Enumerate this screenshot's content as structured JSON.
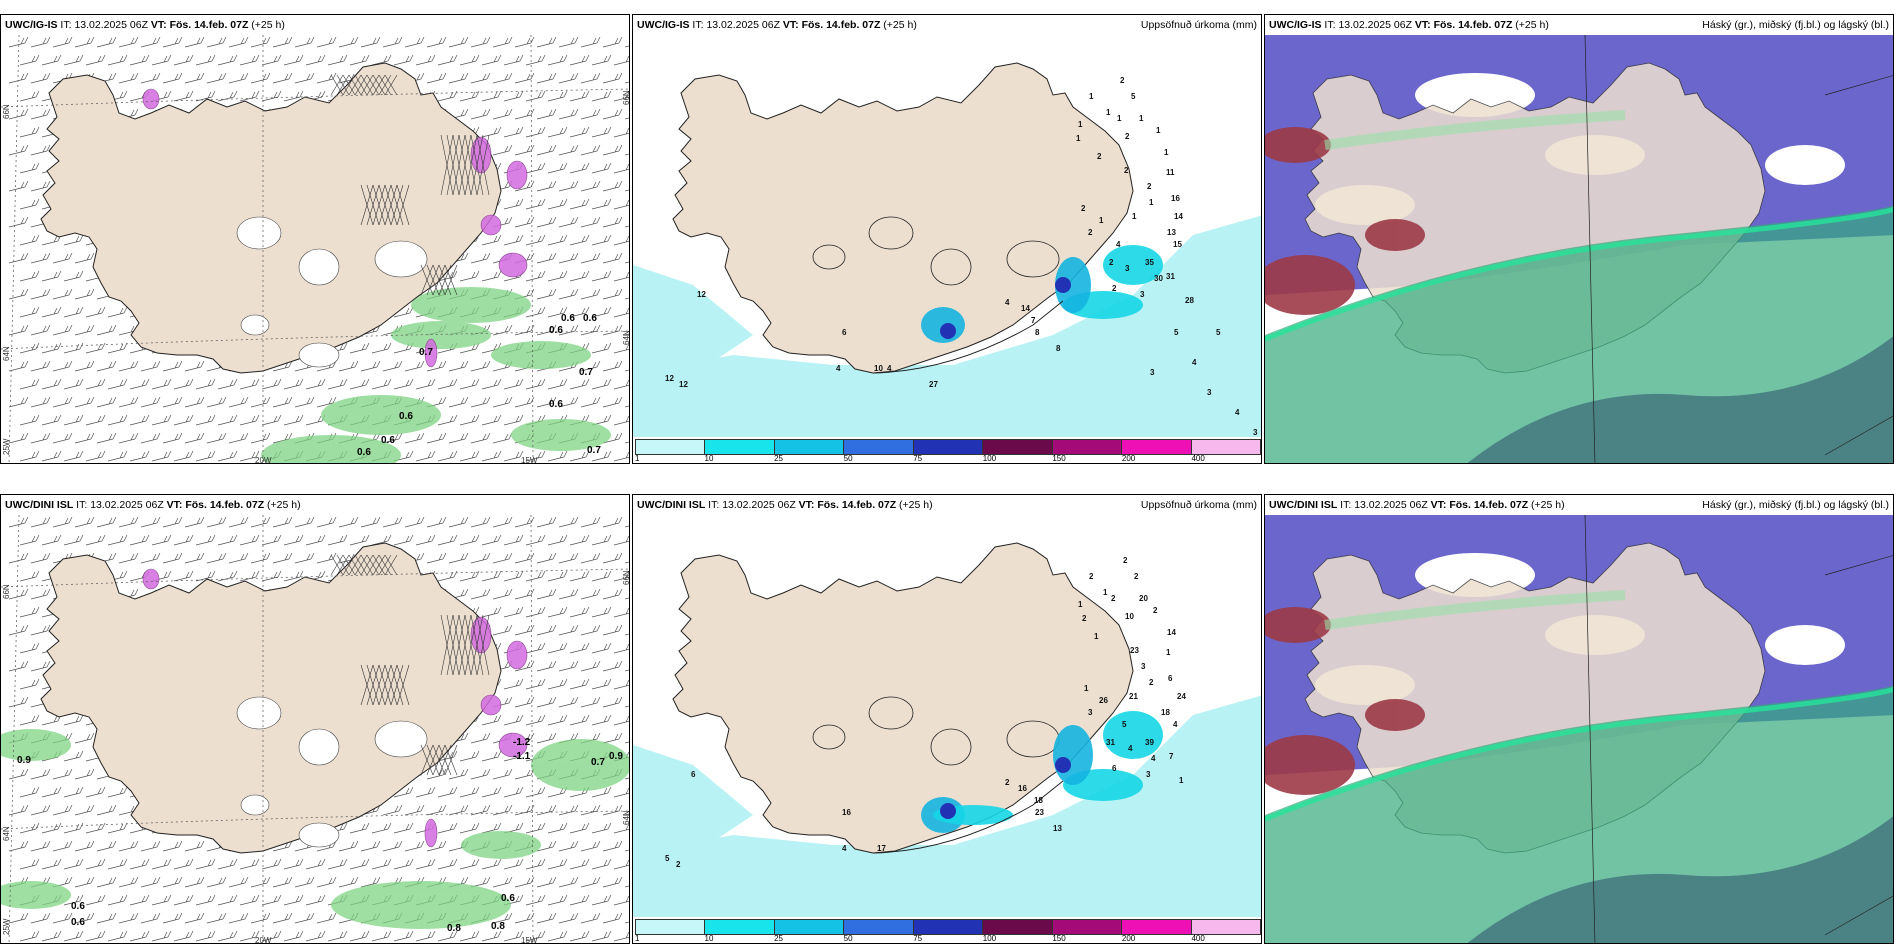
{
  "rows": [
    {
      "model": "UWC/IG-IS",
      "panels": [
        {
          "kind": "wind",
          "header": {
            "model": "UWC/IG-IS",
            "it_label": "IT:",
            "it_value": "13.02.2025 06Z",
            "vt_label": "VT:",
            "vt_value": "Fös. 14.feb. 07Z",
            "lead": "(+25 h)",
            "right": ""
          },
          "grid_labels": {
            "lat_top": "66N",
            "lat_mid": "64N",
            "lon_left": "25W",
            "lon_mid": "20W",
            "lon_right": "15W"
          },
          "values": [
            "0.6",
            "0.6",
            "0.6",
            "0.7",
            "0.7",
            "0.6",
            "0.6",
            "0.6",
            "0.6",
            "0.7"
          ]
        },
        {
          "kind": "precip",
          "header": {
            "model": "UWC/IG-IS",
            "it_label": "IT:",
            "it_value": "13.02.2025 06Z",
            "vt_label": "VT:",
            "vt_value": "Fös. 14.feb. 07Z",
            "lead": "(+25 h)",
            "right": "Uppsöfnuð úrkoma (mm)"
          },
          "values": [
            "1",
            "1",
            "2",
            "1",
            "1",
            "1",
            "2",
            "2",
            "5",
            "1",
            "1",
            "1",
            "11",
            "2",
            "2",
            "1",
            "16",
            "2",
            "1",
            "1",
            "14",
            "2",
            "4",
            "13",
            "15",
            "2",
            "3",
            "35",
            "30",
            "31",
            "2",
            "3",
            "28",
            "4",
            "14",
            "7",
            "8",
            "8",
            "10",
            "6",
            "4",
            "12",
            "12",
            "12",
            "27",
            "4",
            "5",
            "5",
            "4",
            "3",
            "3",
            "4",
            "3"
          ]
        },
        {
          "kind": "clouds",
          "header": {
            "model": "UWC/IG-IS",
            "it_label": "IT:",
            "it_value": "13.02.2025 06Z",
            "vt_label": "VT:",
            "vt_value": "Fös. 14.feb. 07Z",
            "lead": "(+25 h)",
            "right": "Háský (gr.), miðský (fj.bl.) og lágský (bl.)"
          }
        }
      ]
    },
    {
      "model": "UWC/DINI ISL",
      "panels": [
        {
          "kind": "wind",
          "header": {
            "model": "UWC/DINI ISL",
            "it_label": "IT:",
            "it_value": "13.02.2025 06Z",
            "vt_label": "VT:",
            "vt_value": "Fös. 14.feb. 07Z",
            "lead": "(+25 h)",
            "right": ""
          },
          "grid_labels": {
            "lat_top": "66N",
            "lat_mid": "64N",
            "lon_left": "25W",
            "lon_mid": "20W",
            "lon_right": "15W"
          },
          "values": [
            "0.9",
            "0.6",
            "-1.1",
            "-1.2",
            "0.7",
            "0.9",
            "0.6",
            "0.6",
            "0.8",
            "0.8"
          ]
        },
        {
          "kind": "precip",
          "header": {
            "model": "UWC/DINI ISL",
            "it_label": "IT:",
            "it_value": "13.02.2025 06Z",
            "vt_label": "VT:",
            "vt_value": "Fös. 14.feb. 07Z",
            "lead": "(+25 h)",
            "right": "Uppsöfnuð úrkoma (mm)"
          },
          "values": [
            "2",
            "1",
            "2",
            "1",
            "2",
            "2",
            "10",
            "1",
            "2",
            "20",
            "2",
            "14",
            "1",
            "23",
            "3",
            "2",
            "6",
            "1",
            "26",
            "21",
            "24",
            "3",
            "5",
            "18",
            "4",
            "31",
            "4",
            "39",
            "4",
            "7",
            "6",
            "3",
            "1",
            "2",
            "16",
            "18",
            "23",
            "13",
            "17",
            "16",
            "4",
            "6",
            "5",
            "2"
          ]
        },
        {
          "kind": "clouds",
          "header": {
            "model": "UWC/DINI ISL",
            "it_label": "IT:",
            "it_value": "13.02.2025 06Z",
            "vt_label": "VT:",
            "vt_value": "Fös. 14.feb. 07Z",
            "lead": "(+25 h)",
            "right": "Háský (gr.), miðský (fj.bl.) og lágský (bl.)"
          }
        }
      ]
    }
  ],
  "precip_legend": {
    "labels": [
      "1",
      "10",
      "25",
      "50",
      "75",
      "100",
      "150",
      "200",
      "400"
    ],
    "colors": [
      "#c8f7fa",
      "#18e4ec",
      "#14c2e6",
      "#2f6fe0",
      "#2232b4",
      "#6a0a4a",
      "#a40a78",
      "#ee10b4",
      "#f7b8ee"
    ]
  },
  "colors": {
    "land": "#eddfd0",
    "wind_green": "#7fd483",
    "magenta": "#d36be0",
    "precip_light": "#b9f2f5",
    "precip_cyan": "#15d6e6",
    "cloud_high": "#35a97e",
    "cloud_mid": "#5a55c6",
    "cloud_low": "#3f6e7a",
    "cloud_red": "#9c3a47"
  }
}
